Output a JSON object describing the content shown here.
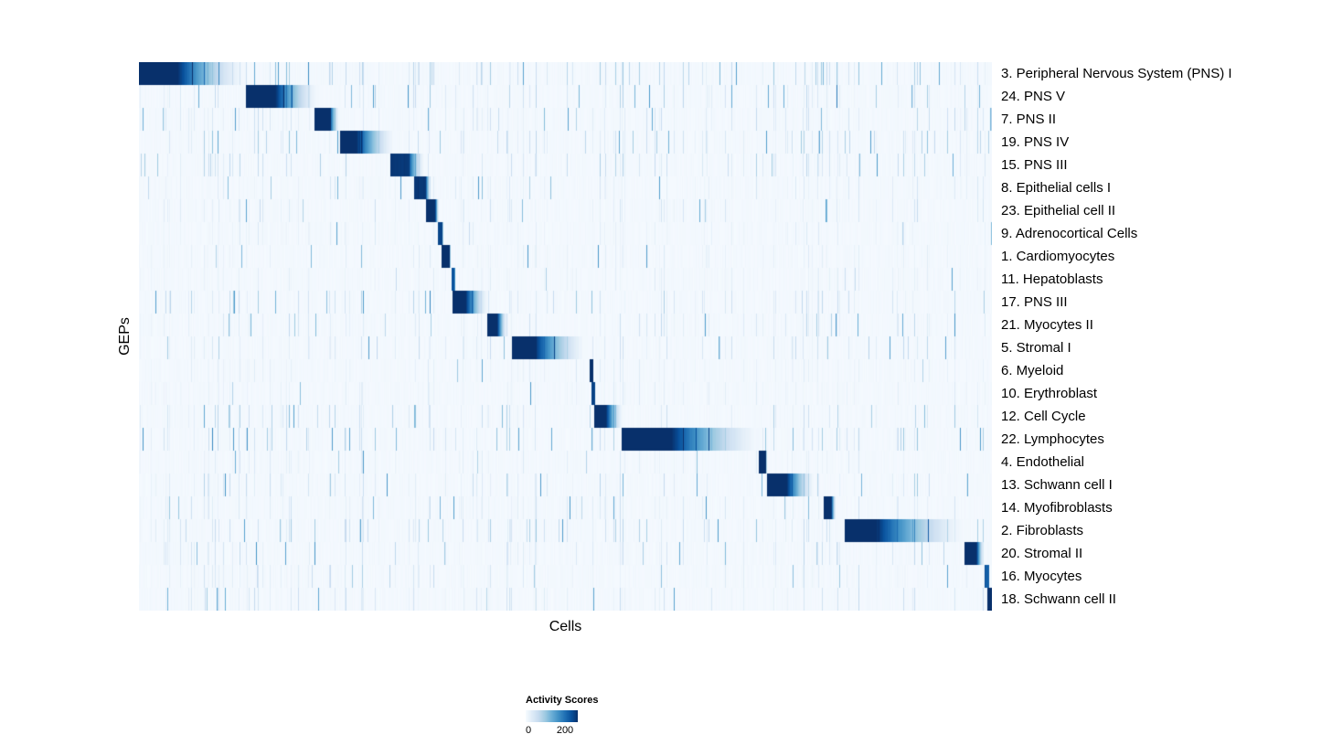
{
  "chart_data": {
    "type": "heatmap",
    "title": "",
    "xlabel": "Cells",
    "ylabel": "GEPs",
    "x_axis": {
      "label": "Cells",
      "ticks_shown": false
    },
    "y_axis": {
      "label": "GEPs",
      "ticks_shown": false
    },
    "colormap": [
      "#f7fbff",
      "#deebf7",
      "#c6dbef",
      "#9ecae1",
      "#6baed6",
      "#4292c6",
      "#2171b5",
      "#08519c",
      "#08306b"
    ],
    "legend": {
      "title": "Activity Scores",
      "min": 0,
      "max": 200,
      "min_label": "0",
      "max_label": "200",
      "position": "bottom"
    },
    "description": "Heatmap of GEP activity scores per cell; cells ordered so each GEP's high-activity block forms a descending diagonal staircase; start/end are fractions of the x axis, peak is the activity score of the block, solid is the fraction of the block at full intensity before fading, noise is relative background streak density",
    "rows": [
      {
        "label": "3. Peripheral Nervous System (PNS) I",
        "start": 0.0,
        "end": 0.125,
        "solid": 0.35,
        "peak": 200,
        "noise": 1.0
      },
      {
        "label": "24. PNS V",
        "start": 0.125,
        "end": 0.21,
        "solid": 0.4,
        "peak": 200,
        "noise": 0.8
      },
      {
        "label": "7. PNS II",
        "start": 0.205,
        "end": 0.235,
        "solid": 0.6,
        "peak": 200,
        "noise": 0.7
      },
      {
        "label": "19. PNS IV",
        "start": 0.235,
        "end": 0.3,
        "solid": 0.3,
        "peak": 200,
        "noise": 0.9
      },
      {
        "label": "15. PNS III",
        "start": 0.295,
        "end": 0.335,
        "solid": 0.5,
        "peak": 190,
        "noise": 0.8
      },
      {
        "label": "8. Epithelial cells I",
        "start": 0.322,
        "end": 0.342,
        "solid": 0.7,
        "peak": 190,
        "noise": 0.4
      },
      {
        "label": "23. Epithelial cell II",
        "start": 0.336,
        "end": 0.352,
        "solid": 0.7,
        "peak": 200,
        "noise": 0.5
      },
      {
        "label": "9. Adrenocortical Cells",
        "start": 0.35,
        "end": 0.357,
        "solid": 0.8,
        "peak": 180,
        "noise": 0.3
      },
      {
        "label": "1. Cardiomyocytes",
        "start": 0.355,
        "end": 0.366,
        "solid": 0.8,
        "peak": 200,
        "noise": 0.3
      },
      {
        "label": "11. Hepatoblasts",
        "start": 0.366,
        "end": 0.371,
        "solid": 0.8,
        "peak": 170,
        "noise": 0.3
      },
      {
        "label": "17. PNS III",
        "start": 0.368,
        "end": 0.41,
        "solid": 0.35,
        "peak": 200,
        "noise": 0.8
      },
      {
        "label": "21. Myocytes II",
        "start": 0.408,
        "end": 0.432,
        "solid": 0.5,
        "peak": 200,
        "noise": 0.6
      },
      {
        "label": "5. Stromal I",
        "start": 0.437,
        "end": 0.525,
        "solid": 0.3,
        "peak": 200,
        "noise": 0.7
      },
      {
        "label": "6. Myeloid",
        "start": 0.528,
        "end": 0.533,
        "solid": 1.0,
        "peak": 200,
        "noise": 0.3
      },
      {
        "label": "10. Erythroblast",
        "start": 0.531,
        "end": 0.535,
        "solid": 1.0,
        "peak": 180,
        "noise": 0.3
      },
      {
        "label": "12. Cell Cycle",
        "start": 0.534,
        "end": 0.568,
        "solid": 0.4,
        "peak": 200,
        "noise": 1.0
      },
      {
        "label": "22. Lymphocytes",
        "start": 0.566,
        "end": 0.73,
        "solid": 0.35,
        "peak": 200,
        "noise": 1.0
      },
      {
        "label": "4. Endothelial",
        "start": 0.727,
        "end": 0.737,
        "solid": 0.8,
        "peak": 200,
        "noise": 0.4
      },
      {
        "label": "13. Schwann cell I",
        "start": 0.737,
        "end": 0.793,
        "solid": 0.4,
        "peak": 200,
        "noise": 0.8
      },
      {
        "label": "14. Myofibroblasts",
        "start": 0.803,
        "end": 0.818,
        "solid": 0.6,
        "peak": 200,
        "noise": 0.5
      },
      {
        "label": "2. Fibroblasts",
        "start": 0.828,
        "end": 0.97,
        "solid": 0.25,
        "peak": 200,
        "noise": 0.9
      },
      {
        "label": "20. Stromal II",
        "start": 0.968,
        "end": 0.992,
        "solid": 0.6,
        "peak": 200,
        "noise": 0.7
      },
      {
        "label": "16. Myocytes",
        "start": 0.992,
        "end": 0.997,
        "solid": 1.0,
        "peak": 160,
        "noise": 0.5
      },
      {
        "label": "18. Schwann cell II",
        "start": 0.995,
        "end": 1.0,
        "solid": 1.0,
        "peak": 200,
        "noise": 0.6
      }
    ]
  }
}
